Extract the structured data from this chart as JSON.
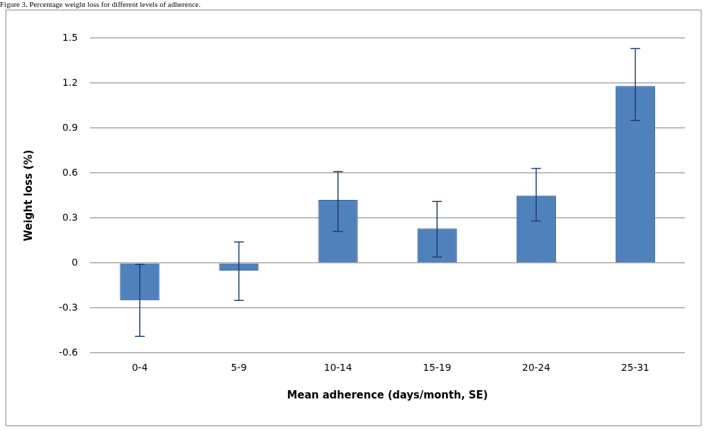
{
  "chart_data": {
    "type": "bar",
    "title": "Figure 3. Percentage weight loss for different levels of adherence.",
    "xlabel": "Mean adherence (days/month, SE)",
    "ylabel": "Weight loss (%)",
    "categories": [
      "0-4",
      "5-9",
      "10-14",
      "15-19",
      "20-24",
      "25-31"
    ],
    "values": [
      -0.25,
      -0.05,
      0.42,
      0.23,
      0.45,
      1.18
    ],
    "errors": [
      [
        -0.49,
        -0.01
      ],
      [
        -0.25,
        0.14
      ],
      [
        0.21,
        0.61
      ],
      [
        0.04,
        0.41
      ],
      [
        0.28,
        0.63
      ],
      [
        0.95,
        1.43
      ]
    ],
    "color": "#4f81bd",
    "ylim": [
      -0.6,
      1.5
    ],
    "yticks": [
      {
        "value": -0.6,
        "label": "-0.6"
      },
      {
        "value": -0.3,
        "label": "-0.3"
      },
      {
        "value": 0,
        "label": "0"
      },
      {
        "value": 0.3,
        "label": "0.3"
      },
      {
        "value": 0.6,
        "label": "0.6"
      },
      {
        "value": 0.9,
        "label": "0.9"
      },
      {
        "value": 1.2,
        "label": "1.2"
      },
      {
        "value": 1.5,
        "label": "1.5"
      }
    ],
    "grid": "y",
    "legend": false
  }
}
